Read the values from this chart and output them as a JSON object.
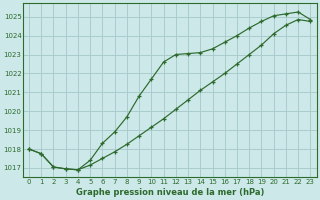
{
  "title": "Graphe pression niveau de la mer (hPa)",
  "bg_color": "#cce8e8",
  "grid_color": "#aacccc",
  "line_color": "#2d6a2d",
  "xlim": [
    -0.5,
    23.5
  ],
  "ylim": [
    1016.5,
    1025.7
  ],
  "xticks": [
    0,
    1,
    2,
    3,
    4,
    5,
    6,
    7,
    8,
    9,
    10,
    11,
    12,
    13,
    14,
    15,
    16,
    17,
    18,
    19,
    20,
    21,
    22,
    23
  ],
  "yticks": [
    1017,
    1018,
    1019,
    1020,
    1021,
    1022,
    1023,
    1024,
    1025
  ],
  "line1_x": [
    0,
    1,
    2,
    3,
    4,
    5,
    6,
    7,
    8,
    9,
    10,
    11,
    12,
    13,
    14,
    15,
    16,
    17,
    18,
    19,
    20,
    21,
    22,
    23
  ],
  "line1_y": [
    1018.0,
    1017.75,
    1017.05,
    1016.95,
    1016.9,
    1017.15,
    1017.5,
    1017.85,
    1018.25,
    1018.7,
    1019.15,
    1019.6,
    1020.1,
    1020.6,
    1021.1,
    1021.55,
    1022.0,
    1022.5,
    1023.0,
    1023.5,
    1024.1,
    1024.55,
    1024.85,
    1024.75
  ],
  "line2_x": [
    0,
    1,
    2,
    3,
    4,
    5,
    6,
    7,
    8,
    9,
    10,
    11,
    12,
    13,
    14,
    15,
    16,
    17,
    18,
    19,
    20,
    21,
    22,
    23
  ],
  "line2_y": [
    1018.0,
    1017.75,
    1017.05,
    1016.95,
    1016.9,
    1017.4,
    1018.3,
    1018.9,
    1019.7,
    1020.8,
    1021.7,
    1022.6,
    1023.0,
    1023.05,
    1023.1,
    1023.3,
    1023.65,
    1024.0,
    1024.4,
    1024.75,
    1025.05,
    1025.15,
    1025.25,
    1024.85
  ]
}
